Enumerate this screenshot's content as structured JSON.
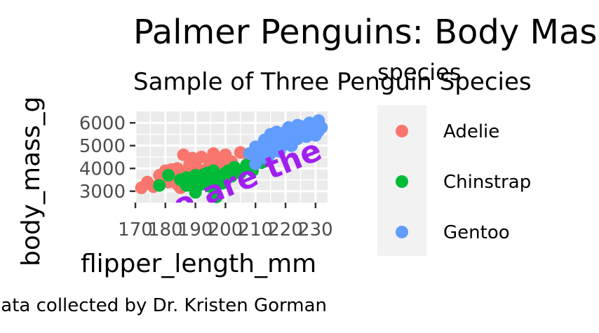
{
  "chart_data": {
    "type": "scatter",
    "title": "Palmer Penguins: Body Mass vs. Flipper Length",
    "subtitle": "Sample of Three Penguin Species",
    "caption": "Data collected by Dr. Kristen Gorman",
    "annotation": "Gentoo are the largest",
    "xlabel": "flipper_length_mm",
    "ylabel": "body_mass_g",
    "xlim": [
      170,
      234
    ],
    "ylim": [
      2500,
      6500
    ],
    "xticks": [
      170,
      180,
      190,
      200,
      210,
      220,
      230
    ],
    "yticks": [
      3000,
      4000,
      5000,
      6000
    ],
    "grid": true,
    "legend": {
      "title": "species",
      "position": "right"
    },
    "colors": {
      "Adelie": "#F8766D",
      "Chinstrap": "#00BA38",
      "Gentoo": "#619CFF"
    },
    "series": [
      {
        "name": "Adelie",
        "color": "#F8766D",
        "points": [
          [
            172,
            3150
          ],
          [
            174,
            3400
          ],
          [
            176,
            3200
          ],
          [
            178,
            3300
          ],
          [
            178,
            3700
          ],
          [
            180,
            3650
          ],
          [
            180,
            3900
          ],
          [
            181,
            3400
          ],
          [
            182,
            3550
          ],
          [
            182,
            3950
          ],
          [
            183,
            3500
          ],
          [
            184,
            3300
          ],
          [
            184,
            4000
          ],
          [
            185,
            3700
          ],
          [
            185,
            3150
          ],
          [
            186,
            3600
          ],
          [
            186,
            4600
          ],
          [
            187,
            3450
          ],
          [
            187,
            3800
          ],
          [
            188,
            3350
          ],
          [
            188,
            4150
          ],
          [
            189,
            3600
          ],
          [
            189,
            4450
          ],
          [
            190,
            3500
          ],
          [
            190,
            3850
          ],
          [
            190,
            4200
          ],
          [
            191,
            3300
          ],
          [
            191,
            3950
          ],
          [
            192,
            3700
          ],
          [
            192,
            4500
          ],
          [
            193,
            3400
          ],
          [
            193,
            3800
          ],
          [
            194,
            4000
          ],
          [
            195,
            3500
          ],
          [
            195,
            4250
          ],
          [
            196,
            3600
          ],
          [
            196,
            4650
          ],
          [
            197,
            3900
          ],
          [
            198,
            4100
          ],
          [
            198,
            4400
          ],
          [
            199,
            3750
          ],
          [
            200,
            4000
          ],
          [
            200,
            4600
          ],
          [
            201,
            4200
          ],
          [
            202,
            4300
          ],
          [
            203,
            3900
          ],
          [
            205,
            4700
          ],
          [
            208,
            4450
          ],
          [
            210,
            4800
          ]
        ]
      },
      {
        "name": "Chinstrap",
        "color": "#00BA38",
        "points": [
          [
            178,
            3250
          ],
          [
            181,
            3700
          ],
          [
            185,
            3500
          ],
          [
            187,
            3250
          ],
          [
            187,
            3600
          ],
          [
            188,
            3400
          ],
          [
            190,
            2950
          ],
          [
            190,
            3700
          ],
          [
            191,
            3500
          ],
          [
            192,
            3300
          ],
          [
            193,
            3550
          ],
          [
            193,
            3750
          ],
          [
            194,
            3800
          ],
          [
            195,
            3200
          ],
          [
            195,
            3650
          ],
          [
            196,
            3450
          ],
          [
            196,
            3900
          ],
          [
            197,
            2750
          ],
          [
            197,
            3700
          ],
          [
            198,
            3600
          ],
          [
            199,
            3350
          ],
          [
            200,
            3500
          ],
          [
            200,
            3800
          ],
          [
            201,
            3900
          ],
          [
            202,
            3650
          ],
          [
            203,
            4050
          ],
          [
            205,
            3800
          ],
          [
            207,
            4150
          ],
          [
            209,
            3900
          ],
          [
            210,
            4300
          ],
          [
            212,
            4250
          ],
          [
            212,
            4800
          ]
        ]
      },
      {
        "name": "Gentoo",
        "color": "#619CFF",
        "points": [
          [
            208,
            4650
          ],
          [
            210,
            4200
          ],
          [
            210,
            4950
          ],
          [
            211,
            4700
          ],
          [
            212,
            5000
          ],
          [
            212,
            4500
          ],
          [
            213,
            4750
          ],
          [
            213,
            5250
          ],
          [
            214,
            4400
          ],
          [
            214,
            4900
          ],
          [
            215,
            5100
          ],
          [
            215,
            4650
          ],
          [
            215,
            5500
          ],
          [
            216,
            4800
          ],
          [
            216,
            5200
          ],
          [
            217,
            4900
          ],
          [
            217,
            5600
          ],
          [
            218,
            5300
          ],
          [
            218,
            4750
          ],
          [
            219,
            5400
          ],
          [
            219,
            5000
          ],
          [
            220,
            5200
          ],
          [
            220,
            5600
          ],
          [
            221,
            5100
          ],
          [
            221,
            5800
          ],
          [
            222,
            5400
          ],
          [
            222,
            5000
          ],
          [
            223,
            5550
          ],
          [
            224,
            5300
          ],
          [
            224,
            5900
          ],
          [
            225,
            5500
          ],
          [
            225,
            5850
          ],
          [
            226,
            5650
          ],
          [
            227,
            5400
          ],
          [
            228,
            5600
          ],
          [
            228,
            6000
          ],
          [
            229,
            5700
          ],
          [
            230,
            5800
          ],
          [
            230,
            5450
          ],
          [
            231,
            5650
          ],
          [
            232,
            5800
          ],
          [
            231,
            6100
          ]
        ]
      }
    ]
  }
}
